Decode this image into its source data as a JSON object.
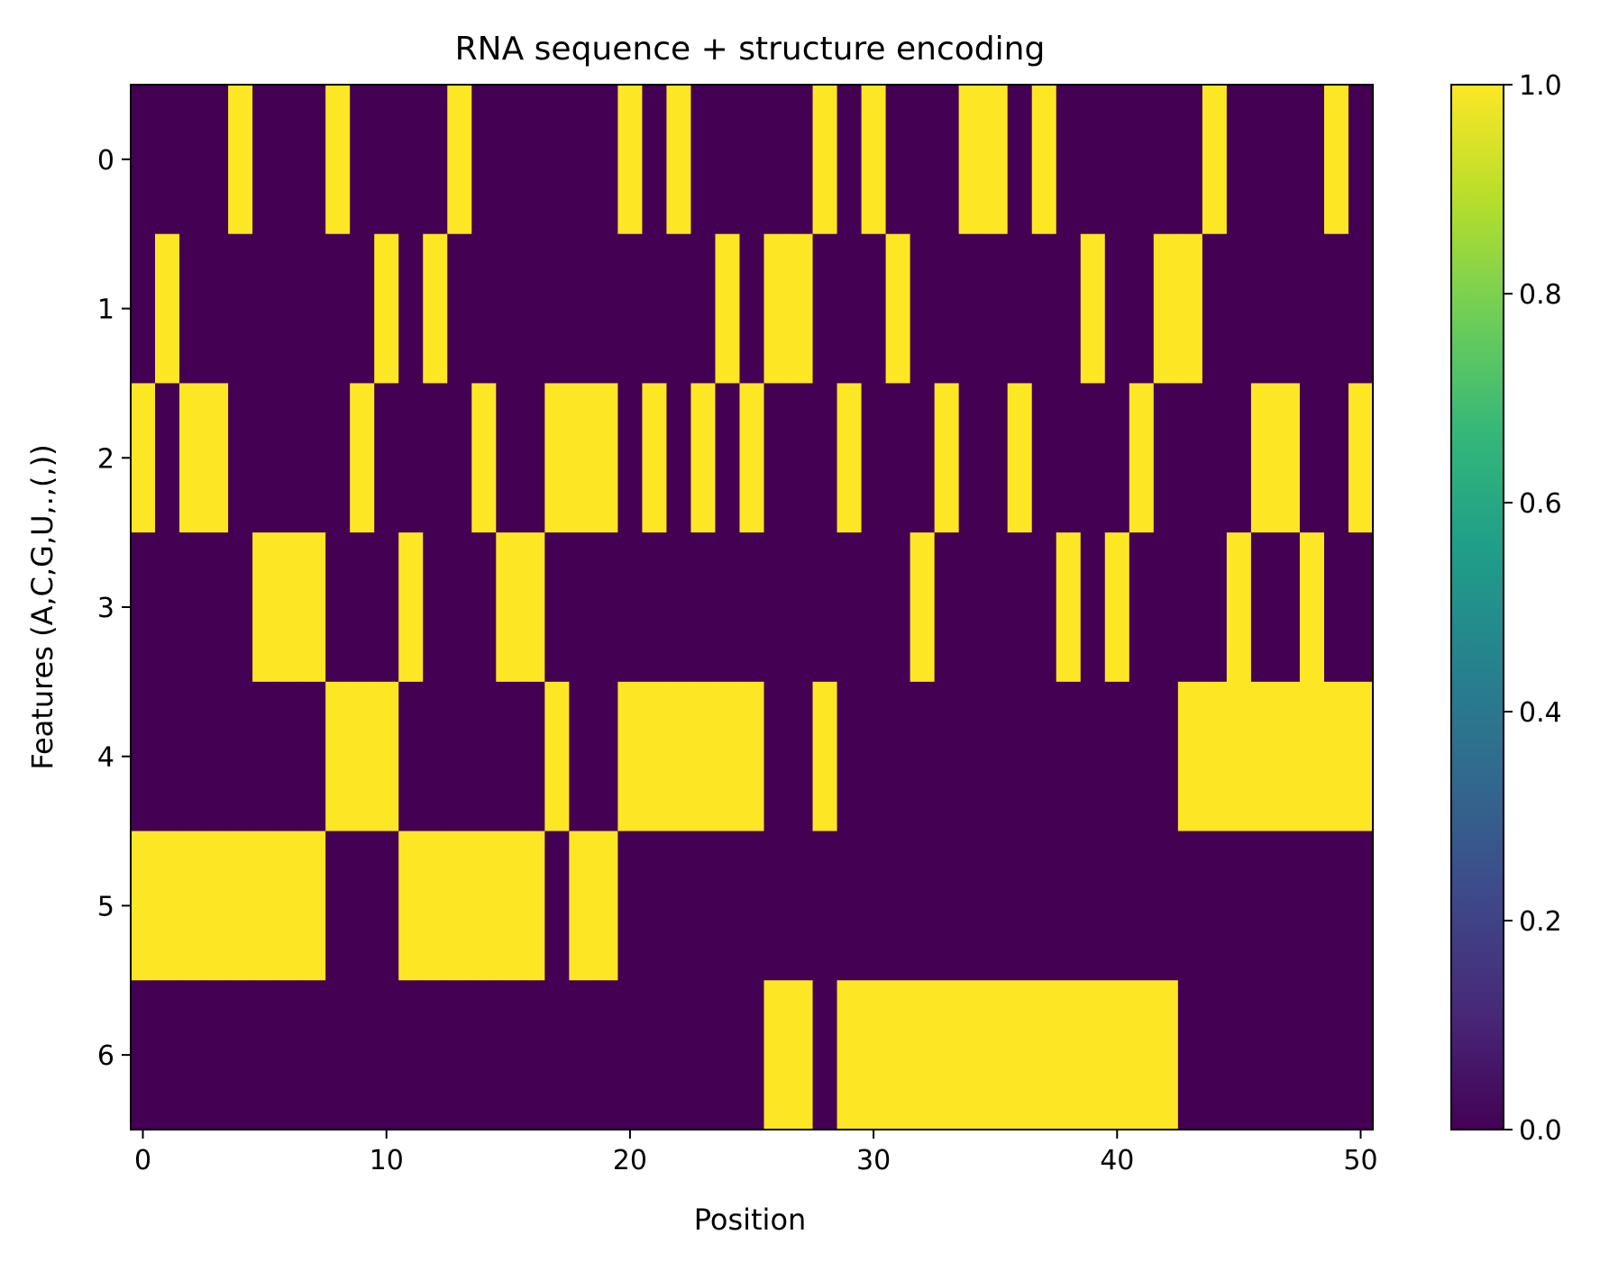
{
  "chart_data": {
    "type": "heatmap",
    "title": "RNA sequence + structure encoding",
    "xlabel": "Position",
    "ylabel": "Features (A,C,G,U,.,(,))",
    "x_ticks": [
      "0",
      "10",
      "20",
      "30",
      "40",
      "50"
    ],
    "y_ticks": [
      "0",
      "1",
      "2",
      "3",
      "4",
      "5",
      "6"
    ],
    "n_positions": 51,
    "n_features": 7,
    "xlim": [
      -0.5,
      50.5
    ],
    "colorbar": {
      "ticks": [
        "0.0",
        "0.2",
        "0.4",
        "0.6",
        "0.8",
        "1.0"
      ],
      "vmin": 0.0,
      "vmax": 1.0
    },
    "colors": {
      "low": "#440154",
      "high": "#fde725",
      "colormap_stops": [
        "#440154",
        "#482878",
        "#3e4989",
        "#31688e",
        "#26828e",
        "#1f9e89",
        "#35b779",
        "#6ece58",
        "#b5de2b",
        "#fde725"
      ]
    },
    "matrix": [
      [
        0,
        0,
        0,
        0,
        1,
        0,
        0,
        0,
        1,
        0,
        0,
        0,
        0,
        1,
        0,
        0,
        0,
        0,
        0,
        0,
        1,
        0,
        1,
        0,
        0,
        0,
        0,
        0,
        1,
        0,
        1,
        0,
        0,
        0,
        1,
        1,
        0,
        1,
        0,
        0,
        0,
        0,
        0,
        0,
        1,
        0,
        0,
        0,
        0,
        1,
        0
      ],
      [
        0,
        1,
        0,
        0,
        0,
        0,
        0,
        0,
        0,
        0,
        1,
        0,
        1,
        0,
        0,
        0,
        0,
        0,
        0,
        0,
        0,
        0,
        0,
        0,
        1,
        0,
        1,
        1,
        0,
        0,
        0,
        1,
        0,
        0,
        0,
        0,
        0,
        0,
        0,
        1,
        0,
        0,
        1,
        1,
        0,
        0,
        0,
        0,
        0,
        0,
        0
      ],
      [
        1,
        0,
        1,
        1,
        0,
        0,
        0,
        0,
        0,
        1,
        0,
        0,
        0,
        0,
        1,
        0,
        0,
        1,
        1,
        1,
        0,
        1,
        0,
        1,
        0,
        1,
        0,
        0,
        0,
        1,
        0,
        0,
        0,
        1,
        0,
        0,
        1,
        0,
        0,
        0,
        0,
        1,
        0,
        0,
        0,
        0,
        1,
        1,
        0,
        0,
        1
      ],
      [
        0,
        0,
        0,
        0,
        0,
        1,
        1,
        1,
        0,
        0,
        0,
        1,
        0,
        0,
        0,
        1,
        1,
        0,
        0,
        0,
        0,
        0,
        0,
        0,
        0,
        0,
        0,
        0,
        0,
        0,
        0,
        0,
        1,
        0,
        0,
        0,
        0,
        0,
        1,
        0,
        1,
        0,
        0,
        0,
        0,
        1,
        0,
        0,
        1,
        0,
        0
      ],
      [
        0,
        0,
        0,
        0,
        0,
        0,
        0,
        0,
        1,
        1,
        1,
        0,
        0,
        0,
        0,
        0,
        0,
        1,
        0,
        0,
        1,
        1,
        1,
        1,
        1,
        1,
        0,
        0,
        1,
        0,
        0,
        0,
        0,
        0,
        0,
        0,
        0,
        0,
        0,
        0,
        0,
        0,
        0,
        1,
        1,
        1,
        1,
        1,
        1,
        1,
        1
      ],
      [
        1,
        1,
        1,
        1,
        1,
        1,
        1,
        1,
        0,
        0,
        0,
        1,
        1,
        1,
        1,
        1,
        1,
        0,
        1,
        1,
        0,
        0,
        0,
        0,
        0,
        0,
        0,
        0,
        0,
        0,
        0,
        0,
        0,
        0,
        0,
        0,
        0,
        0,
        0,
        0,
        0,
        0,
        0,
        0,
        0,
        0,
        0,
        0,
        0,
        0,
        0
      ],
      [
        0,
        0,
        0,
        0,
        0,
        0,
        0,
        0,
        0,
        0,
        0,
        0,
        0,
        0,
        0,
        0,
        0,
        0,
        0,
        0,
        0,
        0,
        0,
        0,
        0,
        0,
        1,
        1,
        0,
        1,
        1,
        1,
        1,
        1,
        1,
        1,
        1,
        1,
        1,
        1,
        1,
        1,
        1,
        0,
        0,
        0,
        0,
        0,
        0,
        0,
        0
      ]
    ]
  }
}
